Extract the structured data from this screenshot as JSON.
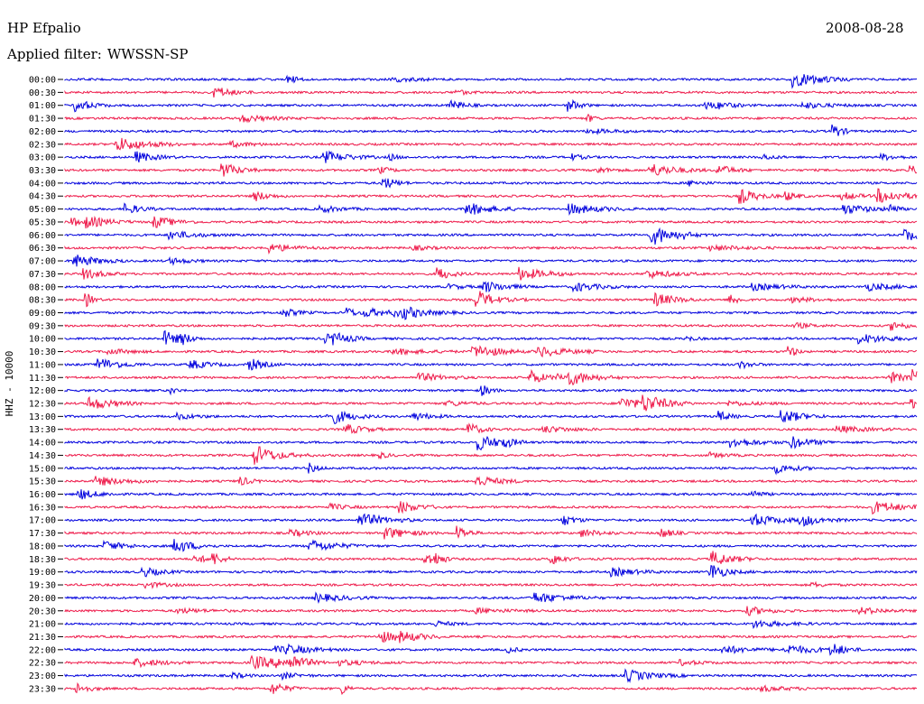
{
  "header": {
    "station": "HP Efpalio",
    "filter_label": "Applied filter:",
    "filter_value": "WWSSN-SP",
    "date": "2008-08-28"
  },
  "chart_data": {
    "type": "line",
    "title": "HP Efpalio",
    "ylabel": "HHZ - 10000",
    "row_labels": [
      "00:00",
      "00:30",
      "01:00",
      "01:30",
      "02:00",
      "02:30",
      "03:00",
      "03:30",
      "04:00",
      "04:30",
      "05:00",
      "05:30",
      "06:00",
      "06:30",
      "07:00",
      "07:30",
      "08:00",
      "08:30",
      "09:00",
      "09:30",
      "10:00",
      "10:30",
      "11:00",
      "11:30",
      "12:00",
      "12:30",
      "13:00",
      "13:30",
      "14:00",
      "14:30",
      "15:00",
      "15:30",
      "16:00",
      "16:30",
      "17:00",
      "17:30",
      "18:00",
      "18:30",
      "19:00",
      "19:30",
      "20:00",
      "20:30",
      "21:00",
      "21:30",
      "22:00",
      "22:30",
      "23:00",
      "23:30"
    ],
    "colors": [
      "#0000dd",
      "#ee1a4a"
    ],
    "grid": false
  }
}
